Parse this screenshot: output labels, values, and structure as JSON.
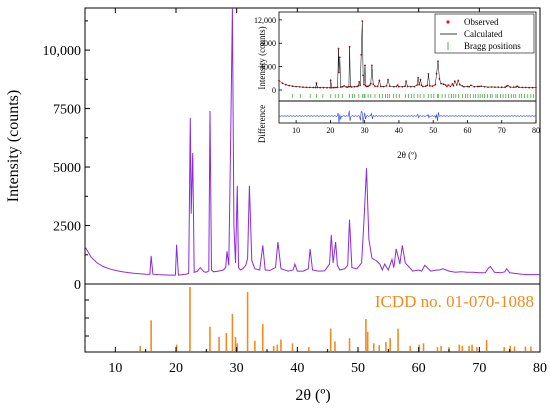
{
  "chart_data": [
    {
      "type": "line",
      "panel": "main",
      "ylabel": "Intensity (counts)",
      "xlim": [
        5,
        80
      ],
      "ylim": [
        0,
        11800
      ],
      "yticks": [
        0,
        2500,
        5000,
        7500,
        10000
      ],
      "ytick_labels": [
        "0",
        "2500",
        "5000",
        "7500",
        "10,000"
      ],
      "series": [
        {
          "color": "#8a2be2",
          "x": [
            5,
            6,
            7,
            8,
            9,
            10,
            11,
            12,
            13,
            14,
            15,
            15.7,
            15.9,
            16.2,
            17,
            18,
            19,
            19.9,
            20.1,
            20.4,
            21,
            21.6,
            22.1,
            22.35,
            22.5,
            22.75,
            23,
            23.5,
            24,
            24.6,
            25,
            25.4,
            25.6,
            25.85,
            26.2,
            27,
            27.8,
            28.2,
            28.4,
            28.7,
            29.0,
            29.3,
            29.55,
            29.8,
            30.1,
            30.3,
            30.6,
            31.0,
            31.5,
            31.8,
            32.1,
            32.5,
            33,
            33.8,
            34.3,
            34.7,
            35.5,
            36.4,
            36.8,
            37.3,
            38.5,
            39.3,
            39.6,
            40,
            41,
            41.8,
            42.1,
            42.5,
            43.5,
            44.5,
            45.3,
            45.6,
            45.9,
            46.3,
            46.6,
            47.0,
            47.8,
            48.3,
            48.6,
            49.0,
            49.8,
            50.6,
            51.0,
            51.4,
            51.8,
            52.3,
            53,
            53.6,
            54,
            54.4,
            55,
            55.6,
            55.9,
            56.3,
            56.9,
            57.3,
            57.8,
            58.5,
            59,
            60,
            60.5,
            61,
            62,
            63,
            63.4,
            64,
            65,
            66,
            67,
            68,
            69,
            70,
            71,
            71.4,
            71.8,
            72.5,
            73.5,
            74.2,
            74.5,
            75,
            76,
            77,
            78,
            79,
            80
          ],
          "y": [
            1600,
            1150,
            900,
            750,
            650,
            580,
            530,
            490,
            460,
            440,
            420,
            410,
            1200,
            420,
            400,
            390,
            380,
            380,
            1680,
            380,
            400,
            420,
            450,
            7100,
            3000,
            5600,
            500,
            540,
            700,
            520,
            500,
            560,
            7400,
            600,
            520,
            550,
            600,
            700,
            1400,
            800,
            6000,
            11800,
            2500,
            900,
            4200,
            700,
            600,
            650,
            800,
            1100,
            4200,
            1000,
            650,
            600,
            1650,
            600,
            580,
            700,
            1800,
            650,
            550,
            600,
            850,
            550,
            550,
            650,
            1500,
            600,
            550,
            560,
            850,
            2100,
            900,
            1800,
            800,
            600,
            650,
            800,
            2750,
            700,
            650,
            900,
            2800,
            4950,
            1900,
            1100,
            1000,
            850,
            600,
            850,
            600,
            1050,
            700,
            1500,
            850,
            1650,
            900,
            700,
            550,
            600,
            550,
            800,
            550,
            600,
            600,
            650,
            550,
            500,
            520,
            500,
            500,
            480,
            480,
            650,
            750,
            500,
            480,
            520,
            650,
            480,
            450,
            420,
            400,
            400,
            400
          ]
        }
      ]
    },
    {
      "type": "bar",
      "panel": "reference",
      "title": "ICDD no. 01-070-1088",
      "xlabel": "2θ (º)",
      "xlim": [
        5,
        80
      ],
      "xticks": [
        10,
        20,
        30,
        40,
        50,
        60,
        70,
        80
      ],
      "ylim": [
        0,
        100
      ],
      "color": "#f08c1e",
      "x": [
        14.1,
        15.9,
        20.1,
        22.3,
        25.6,
        27.1,
        28.3,
        29.3,
        29.8,
        30.1,
        31.8,
        33.0,
        34.3,
        36.1,
        36.7,
        37.3,
        39.2,
        41.9,
        45.5,
        46.2,
        48.6,
        51.3,
        51.6,
        52.6,
        53.5,
        54.6,
        55.3,
        56.6,
        58.6,
        60.1,
        60.8,
        63.1,
        63.7,
        65.0,
        66.7,
        67.2,
        68.3,
        68.8,
        69.6,
        71.2,
        74.1,
        75.1,
        75.8,
        77.6,
        78.5
      ],
      "values": [
        8,
        48,
        10,
        100,
        38,
        22,
        28,
        58,
        22,
        12,
        92,
        16,
        42,
        8,
        10,
        18,
        12,
        6,
        35,
        15,
        20,
        50,
        30,
        12,
        9,
        14,
        20,
        35,
        8,
        10,
        12,
        6,
        8,
        6,
        10,
        8,
        8,
        10,
        6,
        17,
        6,
        8,
        7,
        7,
        7
      ]
    },
    {
      "type": "line",
      "panel": "inset",
      "ylabel": "Intensity (counts)",
      "xlabel": "2θ (º)",
      "xlim": [
        5,
        80
      ],
      "ylim": [
        0,
        13000
      ],
      "yticks": [
        0,
        4000,
        8000,
        12000
      ],
      "ytick_labels": [
        "0",
        "4000",
        "8000",
        "12,000"
      ],
      "xticks": [
        10,
        20,
        30,
        40,
        50,
        60,
        70,
        80
      ],
      "diff_label": "Difference",
      "legend": {
        "position": "top-right",
        "entries": [
          "Observed",
          "Calculated",
          "Bragg positions"
        ]
      },
      "series_colors": {
        "observed": "#d81e1e",
        "calculated": "#000000",
        "bragg": "#2ca02c",
        "difference": "#1f3fe0"
      },
      "bragg_positions": [
        9.0,
        11.2,
        14.1,
        15.9,
        17.8,
        20.1,
        21.4,
        22.3,
        23.6,
        25.6,
        26.4,
        27.1,
        28.3,
        29.3,
        29.8,
        30.1,
        31.0,
        31.8,
        33.0,
        34.3,
        35.2,
        36.1,
        36.7,
        37.3,
        38.4,
        39.2,
        40.1,
        41.9,
        42.8,
        43.6,
        44.4,
        45.5,
        46.2,
        47.3,
        48.6,
        49.4,
        50.2,
        51.3,
        51.6,
        52.6,
        53.5,
        54.6,
        55.3,
        56.0,
        56.6,
        57.4,
        58.6,
        59.4,
        60.1,
        60.8,
        61.7,
        62.4,
        63.1,
        63.7,
        64.3,
        65.0,
        65.8,
        66.7,
        67.2,
        68.3,
        68.8,
        69.6,
        70.4,
        71.2,
        72.0,
        72.9,
        73.5,
        74.1,
        75.1,
        75.8,
        76.6,
        77.6,
        78.5,
        79.3
      ]
    }
  ]
}
